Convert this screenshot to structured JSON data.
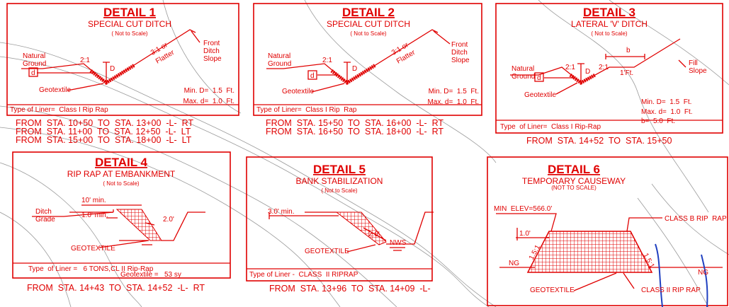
{
  "details": [
    {
      "title": "DETAIL 1",
      "subtitle": "SPECIAL CUT DITCH",
      "scale": "( Not to Scale)",
      "labels": [
        "Natural",
        "Ground",
        "2:1",
        "D",
        "3:1 or",
        "Flatter",
        "Front",
        "Ditch",
        "Slope",
        "d",
        "Geotextile",
        "Min. D=  1.5  Ft.",
        "Max. d=  1.0  Ft.",
        "Type of Liner=  Class I Rip Rap"
      ],
      "from": [
        "FROM  STA. 10+50  TO  STA. 13+00  -L-  RT",
        "FROM  STA. 11+00  TO  STA. 12+50  -L-  LT",
        "FROM  STA. 15+00  TO  STA. 18+00  -L-  LT"
      ]
    },
    {
      "title": "DETAIL 2",
      "subtitle": "SPECIAL CUT DITCH",
      "scale": "( Not to Scale)",
      "labels": [
        "Natural",
        "Ground",
        "2:1",
        "D",
        "3:1 or",
        "Flatter",
        "Front",
        "Ditch",
        "Slope",
        "d",
        "Geotextile",
        "Min. D=  1.5  Ft.",
        "Max. d=  1.0  Ft.",
        "Type of Liner=  Class I Rip  Rap"
      ],
      "from": [
        "FROM  STA. 15+50  TO  STA. 16+00  -L-  RT",
        "FROM  STA. 16+50  TO  STA. 18+00  -L-  RT"
      ]
    },
    {
      "title": "DETAIL 3",
      "subtitle": "LATERAL 'V' DITCH",
      "scale": "( Not to Scale)",
      "labels": [
        "b",
        "Natural",
        "Ground",
        "2:1",
        "D",
        "2:1",
        "1'Ft.",
        "Fill",
        "Slope",
        "d",
        "Geotextile",
        "Min. D=  1.5  Ft.",
        "Max. d=  1.0  Ft.",
        "b=  5.0  Ft.",
        "Type  of Liner=  Class I Rip-Rap"
      ],
      "from": [
        "FROM  STA. 14+52  TO  STA. 15+50"
      ]
    },
    {
      "title": "DETAIL 4",
      "subtitle": "RIP RAP AT EMBANKMENT",
      "scale": "( Not to Scale)",
      "labels": [
        "10' min.",
        "Ditch",
        "Grade",
        "1.0' min.",
        "2.0'",
        "GEOTEXTILE",
        "Type  of Liner =   6 TONS,CL II Rip-Rap",
        "Geotextile =   53 sy"
      ],
      "from": [
        "FROM  STA. 14+43  TO  STA. 14+52  -L-  RT"
      ]
    },
    {
      "title": "DETAIL 5",
      "subtitle": "BANK STABILIZATION",
      "scale": "( Not to Scale)",
      "labels": [
        "3.0' min.",
        "2.0'",
        "NWS",
        "GEOTEXTILE",
        "Type of Liner -  CLASS  II RIPRAP"
      ],
      "from": [
        "FROM  STA. 13+96  TO  STA. 14+09  -L-"
      ]
    },
    {
      "title": "DETAIL 6",
      "subtitle": "TEMPORARY CAUSEWAY",
      "scale": "(NOT TO SCALE)",
      "labels": [
        "MIN  ELEV=566.0'",
        "CLASS B RIP  RAP",
        "1.0'",
        "1.5:1",
        "1.5:1",
        "NG",
        "NG",
        "GEOTEXTILE",
        "CLASS II RIP RAP"
      ]
    }
  ]
}
